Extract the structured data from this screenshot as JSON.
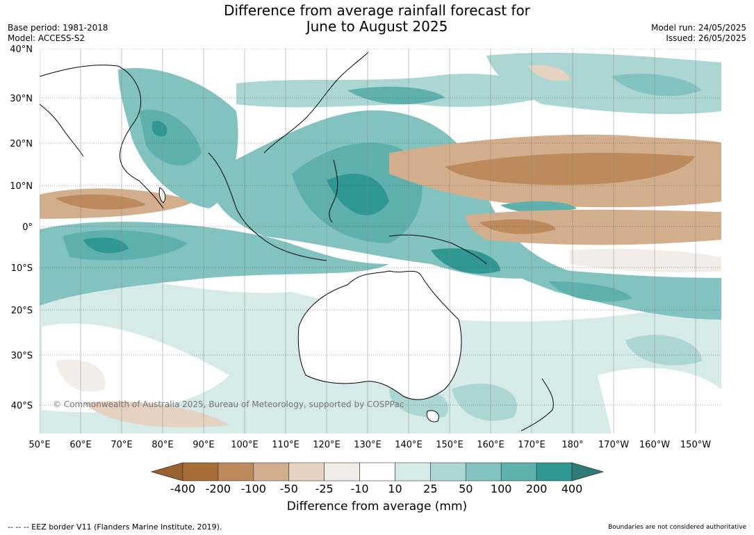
{
  "title_line1": "Difference from average rainfall forecast for",
  "title_line2": "June to August 2025",
  "base_period": "Base period: 1981-2018",
  "model": "Model: ACCESS-S2",
  "model_run": "Model run: 24/05/2025",
  "issued": "Issued: 26/05/2025",
  "lat_labels": [
    "40°N",
    "30°N",
    "20°N",
    "10°N",
    "0°",
    "10°S",
    "20°S",
    "30°S",
    "40°S"
  ],
  "lon_labels": [
    "50°E",
    "60°E",
    "70°E",
    "80°E",
    "90°E",
    "100°E",
    "110°E",
    "120°E",
    "130°E",
    "140°E",
    "150°E",
    "160°E",
    "170°E",
    "180°",
    "170°W",
    "160°W",
    "150°W"
  ],
  "copyright": "© Commonwealth of Australia 2025, Bureau of Meteorology, supported by COSPPac",
  "colorbar": {
    "title": "Difference from average (mm)",
    "ticks": [
      "-400",
      "-200",
      "-100",
      "-50",
      "-25",
      "-10",
      "10",
      "25",
      "50",
      "100",
      "200",
      "400"
    ],
    "colors": [
      "#a86c35",
      "#bc8a5c",
      "#d2ae8c",
      "#e5d2c0",
      "#f2ede8",
      "#ffffff",
      "#d6eae8",
      "#acd6d3",
      "#83c3bf",
      "#5eb0ac",
      "#2f9892"
    ],
    "under_color": "#98612e",
    "over_color": "#2e7a76"
  },
  "footer_left": "--  --  -- EEZ border V11 (Flanders Marine Institute, 2019).",
  "footer_right": "Boundaries are not considered authoritative"
}
